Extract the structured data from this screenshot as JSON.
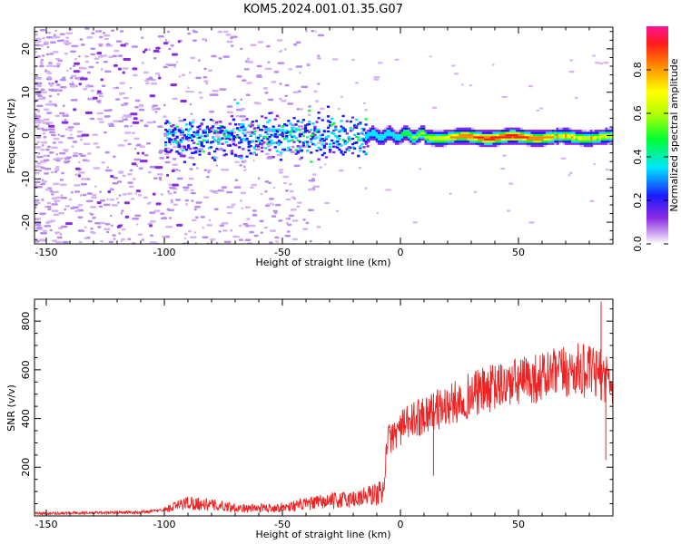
{
  "title": "KOM5.2024.001.01.35.G07",
  "chart_data": [
    {
      "type": "heatmap",
      "xlabel": "Height of straight line (km)",
      "ylabel": "Frequency (Hz)",
      "xlim": [
        -155,
        90
      ],
      "ylim": [
        -25,
        25
      ],
      "xticks": [
        -150,
        -100,
        -50,
        0,
        50
      ],
      "yticks": [
        -20,
        -10,
        0,
        10,
        20
      ],
      "colorbar": {
        "label": "Normalized spectral amplitude",
        "range": [
          0.0,
          1.0
        ],
        "ticks": [
          0.0,
          0.2,
          0.4,
          0.6,
          0.8
        ],
        "colormap": "rainbow (white-violet-blue-cyan-green-yellow-red-magenta)"
      },
      "description_values": {
        "band_center_hz": 0,
        "noise_region_x": [
          -155,
          -100
        ],
        "transition_region_x": [
          -100,
          -15
        ],
        "strong_signal_region_x": [
          -15,
          90
        ],
        "peak_amplitude_near_x": [
          30,
          60
        ]
      }
    },
    {
      "type": "line",
      "xlabel": "Height of straight line (km)",
      "ylabel": "SNR (v/v)",
      "xlim": [
        -155,
        90
      ],
      "ylim": [
        0,
        890
      ],
      "xticks": [
        -150,
        -100,
        -50,
        0,
        50
      ],
      "yticks": [
        200,
        400,
        600,
        800
      ],
      "series_color": "#ee2222",
      "trend_points": [
        {
          "x": -155,
          "y": 10
        },
        {
          "x": -110,
          "y": 15
        },
        {
          "x": -100,
          "y": 25
        },
        {
          "x": -90,
          "y": 55
        },
        {
          "x": -80,
          "y": 45
        },
        {
          "x": -65,
          "y": 30
        },
        {
          "x": -50,
          "y": 35
        },
        {
          "x": -35,
          "y": 55
        },
        {
          "x": -20,
          "y": 70
        },
        {
          "x": -10,
          "y": 90
        },
        {
          "x": -7,
          "y": 100
        },
        {
          "x": -6,
          "y": 300
        },
        {
          "x": 0,
          "y": 360
        },
        {
          "x": 10,
          "y": 420
        },
        {
          "x": 20,
          "y": 450
        },
        {
          "x": 30,
          "y": 500
        },
        {
          "x": 45,
          "y": 540
        },
        {
          "x": 60,
          "y": 570
        },
        {
          "x": 75,
          "y": 600
        },
        {
          "x": 85,
          "y": 580
        },
        {
          "x": 90,
          "y": 560
        }
      ],
      "extreme_points": [
        {
          "x": 85,
          "y": 880
        },
        {
          "x": 87,
          "y": 230
        },
        {
          "x": 14,
          "y": 165
        }
      ]
    }
  ]
}
